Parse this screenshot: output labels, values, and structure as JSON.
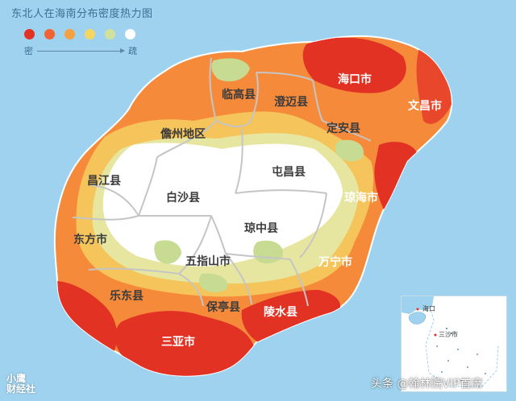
{
  "title": "东北人在海南分布密度热力图",
  "legend": {
    "colors": [
      "#e13223",
      "#f06433",
      "#f5a142",
      "#f3d762",
      "#cfe19b",
      "#ffffff"
    ],
    "dense_label": "密",
    "sparse_label": "疏"
  },
  "colors": {
    "sea": "#9ed2ee",
    "island_outline": "#ffffff",
    "boundary": "#c5c5c5"
  },
  "regions": [
    {
      "id": "haikou",
      "name": "海口市",
      "density": "highest"
    },
    {
      "id": "wenchang",
      "name": "文昌市",
      "density": "high"
    },
    {
      "id": "lingao",
      "name": "临高县",
      "density": "low"
    },
    {
      "id": "chengmai",
      "name": "澄迈县",
      "density": "medium"
    },
    {
      "id": "dingan",
      "name": "定安县",
      "density": "low"
    },
    {
      "id": "danzhou",
      "name": "儋州地区",
      "density": "medium"
    },
    {
      "id": "tunchang",
      "name": "屯昌县",
      "density": "lowest"
    },
    {
      "id": "changjiang",
      "name": "昌江县",
      "density": "lowest"
    },
    {
      "id": "baisha",
      "name": "白沙县",
      "density": "lowest"
    },
    {
      "id": "qionghai",
      "name": "琼海市",
      "density": "high"
    },
    {
      "id": "dongfang",
      "name": "东方市",
      "density": "medium"
    },
    {
      "id": "qiongzhong",
      "name": "琼中县",
      "density": "lowest"
    },
    {
      "id": "wuzhishan",
      "name": "五指山市",
      "density": "lowest"
    },
    {
      "id": "wanning",
      "name": "万宁市",
      "density": "medium"
    },
    {
      "id": "ledong",
      "name": "乐东县",
      "density": "medium"
    },
    {
      "id": "baoting",
      "name": "保亭县",
      "density": "low"
    },
    {
      "id": "lingshui",
      "name": "陵水县",
      "density": "high"
    },
    {
      "id": "sanya",
      "name": "三亚市",
      "density": "highest"
    }
  ],
  "inset": {
    "haikou_label": "海口",
    "sansha_label": "三沙市"
  },
  "watermark": "头条 @翰林院VIP首席",
  "corner_logo": "小鹰\n财经社"
}
